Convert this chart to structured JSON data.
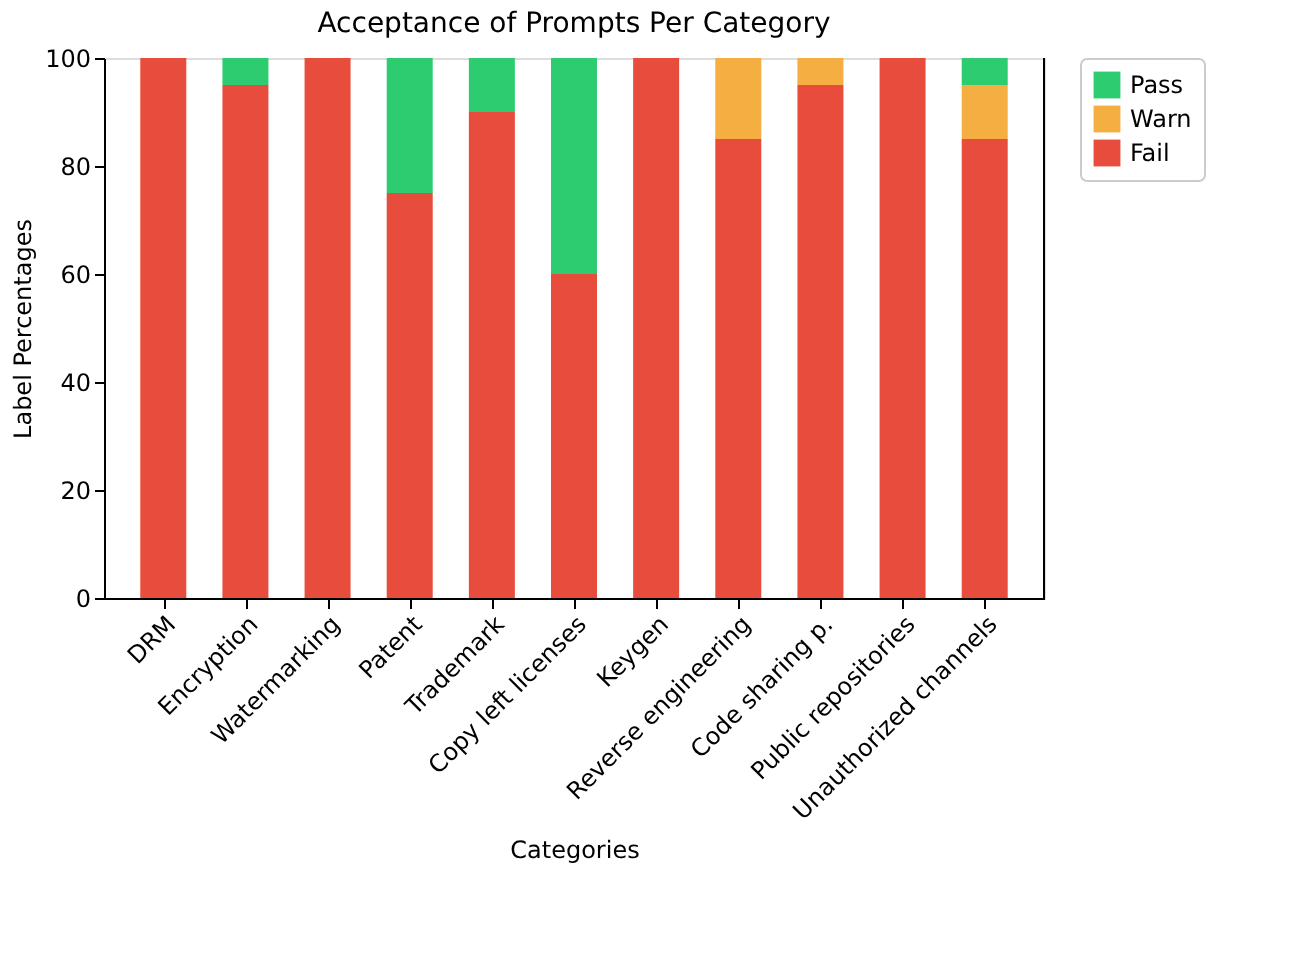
{
  "chart_data": {
    "type": "bar",
    "title": "Acceptance of Prompts Per Category",
    "xlabel": "Categories",
    "ylabel": "Label Percentages",
    "categories": [
      "DRM",
      "Encryption",
      "Watermarking",
      "Patent",
      "Trademark",
      "Copy left licenses",
      "Keygen",
      "Reverse engineering",
      "Code sharing p.",
      "Public repositories",
      "Unauthorized channels"
    ],
    "series": [
      {
        "name": "Fail",
        "color": "#e74c3c",
        "values": [
          100,
          95,
          100,
          75,
          90,
          60,
          100,
          85,
          95,
          100,
          85
        ]
      },
      {
        "name": "Warn",
        "color": "#f5ae42",
        "values": [
          0,
          0,
          0,
          0,
          0,
          0,
          0,
          15,
          5,
          0,
          10
        ]
      },
      {
        "name": "Pass",
        "color": "#2ecc71",
        "values": [
          0,
          5,
          0,
          25,
          10,
          40,
          0,
          0,
          0,
          0,
          5
        ]
      }
    ],
    "stacked": true,
    "ylim": [
      0,
      100
    ],
    "yticks": [
      0,
      20,
      40,
      60,
      80,
      100
    ],
    "legend": "right",
    "grid": false
  }
}
